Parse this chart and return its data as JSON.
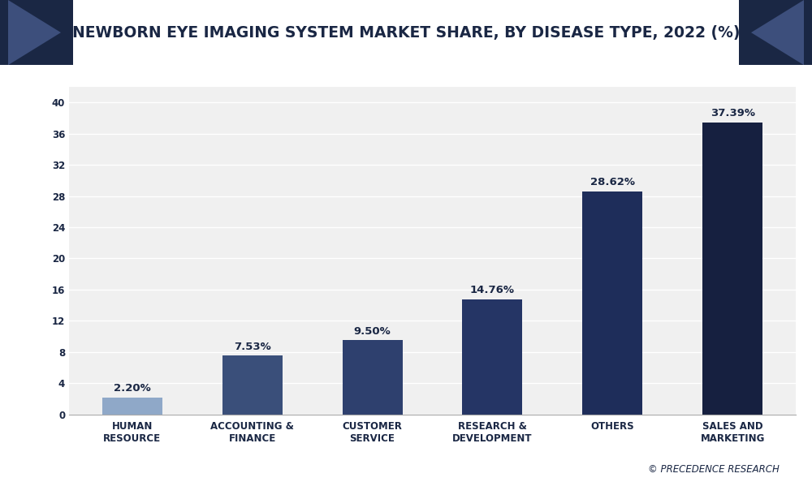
{
  "title": "NEWBORN EYE IMAGING SYSTEM MARKET SHARE, BY DISEASE TYPE, 2022 (%)",
  "categories": [
    "HUMAN\nRESOURCE",
    "ACCOUNTING &\nFINANCE",
    "CUSTOMER\nSERVICE",
    "RESEARCH &\nDEVELOPMENT",
    "OTHERS",
    "SALES AND\nMARKETING"
  ],
  "values": [
    2.2,
    7.53,
    9.5,
    14.76,
    28.62,
    37.39
  ],
  "labels": [
    "2.20%",
    "7.53%",
    "9.50%",
    "14.76%",
    "28.62%",
    "37.39%"
  ],
  "bar_colors": [
    "#8fa8c8",
    "#3a4f7a",
    "#2e406e",
    "#253565",
    "#1e2d5a",
    "#162040"
  ],
  "background_color": "#ffffff",
  "plot_bg_color": "#f0f0f0",
  "ylim": [
    0,
    42
  ],
  "yticks": [
    0,
    4,
    8,
    12,
    16,
    20,
    24,
    28,
    32,
    36,
    40
  ],
  "title_fontsize": 13.5,
  "bar_label_fontsize": 9.5,
  "tick_label_fontsize": 8.5,
  "watermark": "© PRECEDENCE RESEARCH",
  "title_bg_color": "#f0f0f5",
  "header_dark_color": "#1a2744",
  "header_navy": "#1a2744",
  "header_medium": "#3d4f7c"
}
